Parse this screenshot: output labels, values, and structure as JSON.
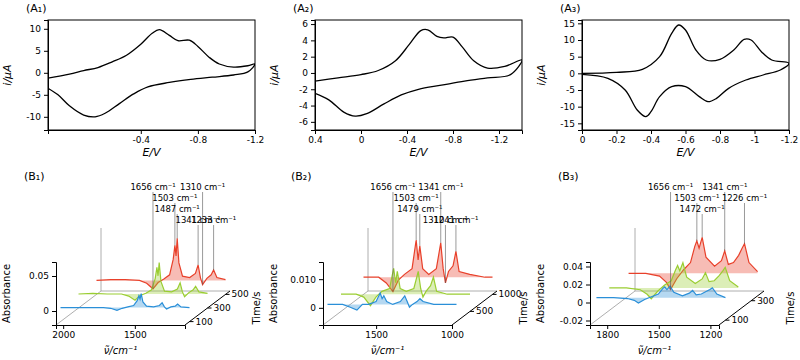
{
  "chart_data": [
    {
      "type": "line",
      "title": "(A₁)",
      "xlabel": "E/V",
      "ylabel": "i/μA",
      "x": [
        0.25,
        0.1,
        0,
        -0.1,
        -0.2,
        -0.3,
        -0.4,
        -0.48,
        -0.53,
        -0.6,
        -0.66,
        -0.74,
        -0.8,
        -0.88,
        -0.95,
        -1.05,
        -1.15,
        -1.2,
        -1.15,
        -1.05,
        -0.9,
        -0.75,
        -0.6,
        -0.45,
        -0.35,
        -0.25,
        -0.15,
        -0.08,
        0,
        0.1,
        0.18,
        0.25
      ],
      "xlim": [
        0.25,
        -1.2
      ],
      "xticks": [
        -0.4,
        -0.8,
        -1.2
      ],
      "ylim": [
        -13,
        12
      ],
      "yticks": [
        -10,
        -5,
        0,
        5,
        10
      ],
      "series": [
        {
          "color": "#000000",
          "values": [
            -1.2,
            -0.3,
            0.5,
            1.2,
            2.5,
            4,
            6.5,
            9,
            9.8,
            8.5,
            7.3,
            7.4,
            6,
            3.5,
            2,
            1.3,
            1.6,
            2,
            0.2,
            -0.5,
            -1,
            -1.5,
            -2.2,
            -3.2,
            -4.8,
            -7,
            -9.2,
            -10,
            -9.6,
            -7.5,
            -5,
            -3.5
          ]
        }
      ]
    },
    {
      "type": "line",
      "title": "(A₂)",
      "xlabel": "E/V",
      "ylabel": "i/μA",
      "x": [
        0.4,
        0.2,
        0,
        -0.15,
        -0.3,
        -0.42,
        -0.52,
        -0.58,
        -0.66,
        -0.72,
        -0.8,
        -0.88,
        -0.98,
        -1.1,
        -1.25,
        -1.4,
        -1.3,
        -1.1,
        -0.9,
        -0.7,
        -0.5,
        -0.35,
        -0.2,
        -0.05,
        0.05,
        0.15,
        0.28,
        0.4
      ],
      "xlim": [
        0.4,
        -1.4
      ],
      "xticks": [
        0.4,
        0,
        -0.4,
        -0.8,
        -1.2
      ],
      "ylim": [
        -7,
        6.5
      ],
      "yticks": [
        -6,
        -4,
        -2,
        0,
        2,
        4,
        6
      ],
      "series": [
        {
          "color": "#000000",
          "values": [
            -1,
            -0.6,
            -0.2,
            0.3,
            1.5,
            3.5,
            5.2,
            5.3,
            4.5,
            4.3,
            4.4,
            3.2,
            1.5,
            0.6,
            0.8,
            1.6,
            -0.2,
            -0.6,
            -1,
            -1.5,
            -2,
            -2.7,
            -3.8,
            -5,
            -5.3,
            -4.8,
            -3.3,
            -2.5
          ]
        }
      ]
    },
    {
      "type": "line",
      "title": "(A₃)",
      "xlabel": "E/V",
      "ylabel": "i/μA",
      "x": [
        0,
        -0.2,
        -0.35,
        -0.45,
        -0.52,
        -0.56,
        -0.6,
        -0.66,
        -0.72,
        -0.8,
        -0.88,
        -0.94,
        -0.98,
        -1.04,
        -1.1,
        -1.2,
        -1.15,
        -1.05,
        -0.95,
        -0.85,
        -0.78,
        -0.73,
        -0.68,
        -0.6,
        -0.52,
        -0.45,
        -0.4,
        -0.37,
        -0.32,
        -0.25,
        -0.15,
        0
      ],
      "xlim": [
        0,
        -1.2
      ],
      "xticks": [
        0,
        -0.2,
        -0.4,
        -0.6,
        -0.8,
        -1.0,
        -1.2
      ],
      "ylim": [
        -17,
        16
      ],
      "yticks": [
        -15,
        -10,
        -5,
        0,
        5,
        10,
        15
      ],
      "series": [
        {
          "color": "#000000",
          "values": [
            0,
            0.3,
            1.2,
            5,
            12,
            14.5,
            13,
            7,
            4,
            4.2,
            7,
            10.2,
            10,
            6.5,
            4,
            3,
            1,
            -0.5,
            -2,
            -4.5,
            -7.5,
            -8.5,
            -7,
            -4,
            -4,
            -7,
            -11.5,
            -13,
            -11,
            -5,
            -1.5,
            -0.3
          ]
        }
      ]
    },
    {
      "type": "surface",
      "title": "(B₁)",
      "xlabel": "ν̃/cm⁻¹",
      "ylabel": "Absorbance",
      "zlabel": "Time/s",
      "x": [
        2050,
        1950,
        1850,
        1750,
        1700,
        1656,
        1620,
        1580,
        1540,
        1515,
        1503,
        1495,
        1487,
        1475,
        1450,
        1400,
        1360,
        1341,
        1325,
        1310,
        1280,
        1250,
        1233,
        1210,
        1150
      ],
      "xlim": [
        2050,
        1150
      ],
      "xticks": [
        2000,
        1500
      ],
      "ylim": [
        -0.02,
        0.07
      ],
      "yticks": [
        0,
        0.05
      ],
      "zlim": [
        50,
        550
      ],
      "zticks": [
        100,
        300,
        500
      ],
      "series": [
        {
          "z": 500,
          "color": "#e8402a",
          "values": [
            0,
            0.001,
            0.001,
            0,
            -0.004,
            -0.012,
            -0.003,
            0.002,
            0.008,
            0.03,
            0.05,
            0.035,
            0.06,
            0.025,
            0.006,
            0.004,
            0.01,
            0.022,
            0.004,
            -0.006,
            0.003,
            0.008,
            0.015,
            0.004,
            0.001
          ]
        },
        {
          "z": 300,
          "color": "#9acd32",
          "values": [
            0,
            0.001,
            0,
            0,
            -0.003,
            -0.009,
            -0.002,
            0.001,
            0.006,
            0.022,
            0.038,
            0.026,
            0.045,
            0.018,
            0.004,
            0.003,
            0.007,
            0.016,
            0.003,
            -0.004,
            0.002,
            0.006,
            0.011,
            0.003,
            0.001
          ]
        },
        {
          "z": 100,
          "color": "#2a8fd8",
          "values": [
            0,
            0,
            0,
            0,
            -0.001,
            -0.004,
            -0.001,
            0.001,
            0.003,
            0.01,
            0.017,
            0.012,
            0.02,
            0.008,
            0.002,
            0.001,
            0.003,
            0.007,
            0.001,
            -0.002,
            0.001,
            0.002,
            0.005,
            0.001,
            0
          ]
        }
      ],
      "annotations": [
        {
          "text": "1656 cm⁻¹",
          "x": 1656
        },
        {
          "text": "1503 cm⁻¹",
          "x": 1503
        },
        {
          "text": "1487 cm⁻¹",
          "x": 1487
        },
        {
          "text": "1341 cm⁻¹",
          "x": 1341
        },
        {
          "text": "1310 cm⁻¹",
          "x": 1310
        },
        {
          "text": "1233 cm⁻¹",
          "x": 1233
        }
      ]
    },
    {
      "type": "surface",
      "title": "(B₂)",
      "xlabel": "ν̃/cm⁻¹",
      "ylabel": "Absorbance",
      "zlabel": "Time/s",
      "x": [
        1850,
        1750,
        1700,
        1656,
        1620,
        1580,
        1530,
        1503,
        1490,
        1479,
        1460,
        1420,
        1370,
        1341,
        1325,
        1310,
        1290,
        1260,
        1241,
        1220,
        1150,
        1050,
        1000
      ],
      "xlim": [
        1850,
        1000
      ],
      "xticks": [
        1500,
        1000
      ],
      "ylim": [
        -0.006,
        0.016
      ],
      "yticks": [
        0,
        {
          "value": 0.01,
          "label": "0.010"
        }
      ],
      "zlim": [
        100,
        1100
      ],
      "zticks": [
        500,
        1000
      ],
      "series": [
        {
          "z": 1000,
          "color": "#e8402a",
          "values": [
            0,
            0,
            -0.002,
            -0.005,
            -0.001,
            0.001,
            0.003,
            0.013,
            0.006,
            0.011,
            0.003,
            0.001,
            0.003,
            0.012,
            0.003,
            -0.002,
            0.002,
            0.004,
            0.009,
            0.002,
            0.001,
            0,
            0
          ]
        },
        {
          "z": 500,
          "color": "#9acd32",
          "values": [
            0,
            0,
            -0.001,
            -0.004,
            -0.001,
            0.001,
            0.002,
            0.009,
            0.004,
            0.008,
            0.002,
            0.001,
            0.002,
            0.008,
            0.002,
            -0.001,
            0.001,
            0.003,
            0.006,
            0.001,
            0,
            0,
            0
          ]
        },
        {
          "z": 200,
          "color": "#2a8fd8",
          "values": [
            0,
            0,
            -0.001,
            -0.002,
            0,
            0,
            0.001,
            0.004,
            0.002,
            0.003,
            0.001,
            0,
            0.001,
            0.003,
            0.001,
            -0.001,
            0,
            0.001,
            0.002,
            0.001,
            0,
            0,
            0
          ]
        }
      ],
      "annotations": [
        {
          "text": "1656 cm⁻¹",
          "x": 1656
        },
        {
          "text": "1503 cm⁻¹",
          "x": 1503
        },
        {
          "text": "1479 cm⁻¹",
          "x": 1479
        },
        {
          "text": "1341 cm⁻¹",
          "x": 1341
        },
        {
          "text": "1310 cm⁻¹",
          "x": 1310
        },
        {
          "text": "1241 cm⁻¹",
          "x": 1241
        }
      ]
    },
    {
      "type": "surface",
      "title": "(B₃)",
      "xlabel": "ν̃/cm⁻¹",
      "ylabel": "Absorbance",
      "zlabel": "Time/s",
      "x": [
        1900,
        1800,
        1720,
        1680,
        1656,
        1620,
        1580,
        1540,
        1515,
        1503,
        1490,
        1472,
        1450,
        1400,
        1360,
        1341,
        1320,
        1290,
        1260,
        1240,
        1226,
        1200,
        1150
      ],
      "xlim": [
        1900,
        1150
      ],
      "xticks": [
        1800,
        1500,
        1200
      ],
      "ylim": [
        -0.025,
        0.045
      ],
      "yticks": [
        -0.02,
        0,
        0.02,
        0.04
      ],
      "zlim": [
        50,
        400
      ],
      "zticks": [
        100,
        300
      ],
      "series": [
        {
          "z": 350,
          "color": "#e8402a",
          "values": [
            0,
            0,
            -0.003,
            -0.01,
            -0.018,
            -0.006,
            0.004,
            0.012,
            0.03,
            0.036,
            0.028,
            0.04,
            0.018,
            0.008,
            0.014,
            0.025,
            0.01,
            0.012,
            0.02,
            0.028,
            0.033,
            0.012,
            0.002
          ]
        },
        {
          "z": 200,
          "color": "#9acd32",
          "values": [
            0,
            0,
            -0.002,
            -0.007,
            -0.012,
            -0.004,
            0.003,
            0.008,
            0.02,
            0.025,
            0.019,
            0.028,
            0.012,
            0.005,
            0.01,
            0.017,
            0.007,
            0.008,
            0.014,
            0.019,
            0.023,
            0.008,
            0.001
          ]
        },
        {
          "z": 100,
          "color": "#2a8fd8",
          "values": [
            0,
            0,
            -0.001,
            -0.003,
            -0.006,
            -0.002,
            0.001,
            0.004,
            0.01,
            0.012,
            0.009,
            0.013,
            0.006,
            0.002,
            0.005,
            0.008,
            0.003,
            0.004,
            0.007,
            0.009,
            0.011,
            0.004,
            0
          ]
        }
      ],
      "annotations": [
        {
          "text": "1656 cm⁻¹",
          "x": 1656
        },
        {
          "text": "1503 cm⁻¹",
          "x": 1503
        },
        {
          "text": "1472 cm⁻¹",
          "x": 1472
        },
        {
          "text": "1341 cm⁻¹",
          "x": 1341
        },
        {
          "text": "1226 cm⁻¹",
          "x": 1226
        }
      ]
    }
  ]
}
